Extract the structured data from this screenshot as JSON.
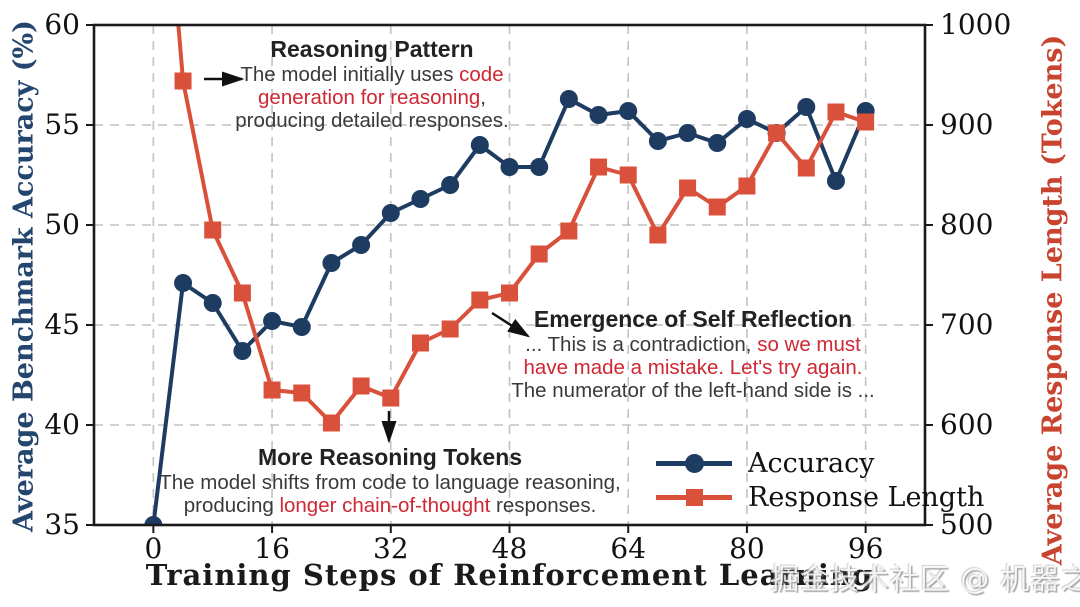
{
  "watermark": "掘金技术社区 @ 机器之心",
  "chart_data": {
    "type": "line",
    "title": "",
    "xlabel": "Training Steps of Reinforcement Learning",
    "ylabel_left": "Average Benchmark Accuracy (%)",
    "ylabel_right": "Average Response Length (Tokens)",
    "xlim": [
      -8,
      104
    ],
    "ylim_left": [
      35,
      60
    ],
    "ylim_right": [
      500,
      1000
    ],
    "xticks": [
      0,
      16,
      32,
      48,
      64,
      80,
      96
    ],
    "yticks_left": [
      35,
      40,
      45,
      50,
      55,
      60
    ],
    "yticks_right": [
      500,
      600,
      700,
      800,
      900,
      1000
    ],
    "grid": true,
    "x": [
      0,
      4,
      8,
      12,
      16,
      20,
      24,
      28,
      32,
      36,
      40,
      44,
      48,
      52,
      56,
      60,
      64,
      68,
      72,
      76,
      80,
      84,
      88,
      92,
      96
    ],
    "series": [
      {
        "name": "Accuracy",
        "axis": "left",
        "marker": "circle",
        "color": "#1e3c61",
        "values": [
          35.0,
          47.1,
          46.1,
          43.7,
          45.2,
          44.9,
          48.1,
          49.0,
          50.6,
          51.3,
          52.0,
          54.0,
          52.9,
          52.9,
          56.3,
          55.5,
          55.7,
          54.2,
          54.6,
          54.1,
          55.3,
          54.6,
          55.9,
          52.2,
          55.7
        ]
      },
      {
        "name": "Response Length",
        "axis": "right",
        "marker": "square",
        "color": "#d9503b",
        "values": [
          1300,
          944,
          795,
          732,
          635,
          632,
          602,
          639,
          627,
          682,
          696,
          725,
          732,
          771,
          794,
          858,
          850,
          790,
          837,
          818,
          839,
          892,
          857,
          913,
          903
        ],
        "note": "first value exceeds axis max (clipped at plot top)"
      }
    ],
    "legend": {
      "position": "lower right",
      "entries": [
        "Accuracy",
        "Response Length"
      ]
    }
  },
  "annotations": {
    "reasoning_pattern": {
      "title": "Reasoning Pattern",
      "arrow": "right",
      "l1a": "The model initially uses ",
      "l1b": "code",
      "l2a": "generation for reasoning",
      "l2b": ",",
      "l3": "producing detailed responses."
    },
    "self_reflection": {
      "title": "Emergence of Self Reflection",
      "arrow": "down-right",
      "l1a": "... This is a contradiction, ",
      "l1b": "so we must",
      "l2a": "have made a mistake. Let's try again.",
      "l3": "The numerator of the left-hand side is ..."
    },
    "more_tokens": {
      "title": "More Reasoning Tokens",
      "arrow": "down",
      "l1": "The model shifts from code to language reasoning,",
      "l2a": "producing ",
      "l2b": "longer chain-of-thought",
      "l2c": " responses."
    }
  },
  "colors": {
    "accuracy": "#1e3c61",
    "response_length": "#d9503b",
    "annotation_red": "#cf2733",
    "annotation_dark": "#3a3a3a",
    "grid": "#c2c2c2",
    "spine": "#1a1a1a"
  }
}
